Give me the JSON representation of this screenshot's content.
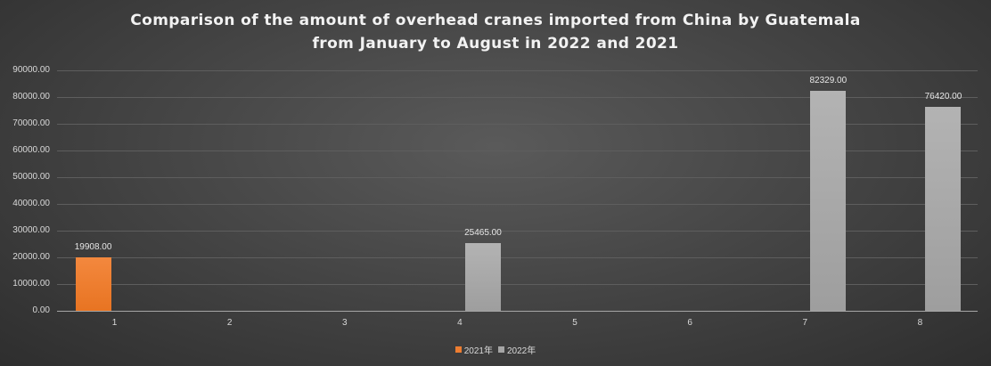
{
  "chart_data": {
    "type": "bar",
    "title": "Comparison of the amount of overhead cranes imported from China by Guatemala from January to August in 2022 and 2021",
    "title_lines": [
      "Comparison of the amount of overhead cranes imported from China by Guatemala",
      "from January to August in 2022 and 2021"
    ],
    "xlabel": "",
    "ylabel": "",
    "categories": [
      "1",
      "2",
      "3",
      "4",
      "5",
      "6",
      "7",
      "8"
    ],
    "series": [
      {
        "name": "2021年",
        "color": "#ED7D31",
        "values": [
          19908.0,
          null,
          null,
          null,
          null,
          null,
          null,
          null
        ]
      },
      {
        "name": "2022年",
        "color": "#A5A5A5",
        "values": [
          null,
          null,
          null,
          25465.0,
          null,
          null,
          82329.0,
          76420.0
        ]
      }
    ],
    "data_labels": {
      "2021年": [
        "19908.00",
        "",
        "",
        "",
        "",
        "",
        "",
        ""
      ],
      "2022年": [
        "",
        "",
        "",
        "25465.00",
        "",
        "",
        "82329.00",
        "76420.00"
      ]
    },
    "ylim": [
      0,
      90000
    ],
    "yticks": [
      "0.00",
      "10000.00",
      "20000.00",
      "30000.00",
      "40000.00",
      "50000.00",
      "60000.00",
      "70000.00",
      "80000.00",
      "90000.00"
    ],
    "grid": true,
    "legend_position": "bottom"
  }
}
